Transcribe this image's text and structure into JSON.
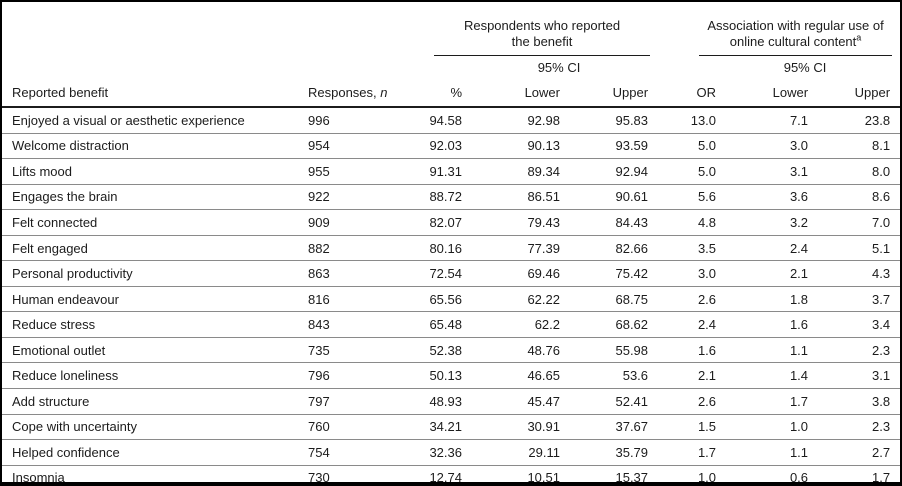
{
  "table": {
    "group_headers": [
      {
        "label": "Respondents who reported the benefit",
        "superscript": ""
      },
      {
        "label": "Association with regular use of online cultural content",
        "superscript": "a"
      }
    ],
    "columns": {
      "benefit": "Reported benefit",
      "responses_prefix": "Responses, ",
      "responses_symbol": "n",
      "ci": "95% CI",
      "percent": "%",
      "lower": "Lower",
      "upper": "Upper",
      "odds_ratio": "OR"
    },
    "rows": [
      {
        "benefit": "Enjoyed a visual or aesthetic experience",
        "responses": "996",
        "percent": "94.58",
        "ci_lower": "92.98",
        "ci_upper": "95.83",
        "or": "13.0",
        "or_lower": "7.1",
        "or_upper": "23.8"
      },
      {
        "benefit": "Welcome distraction",
        "responses": "954",
        "percent": "92.03",
        "ci_lower": "90.13",
        "ci_upper": "93.59",
        "or": "5.0",
        "or_lower": "3.0",
        "or_upper": "8.1"
      },
      {
        "benefit": "Lifts mood",
        "responses": "955",
        "percent": "91.31",
        "ci_lower": "89.34",
        "ci_upper": "92.94",
        "or": "5.0",
        "or_lower": "3.1",
        "or_upper": "8.0"
      },
      {
        "benefit": "Engages the brain",
        "responses": "922",
        "percent": "88.72",
        "ci_lower": "86.51",
        "ci_upper": "90.61",
        "or": "5.6",
        "or_lower": "3.6",
        "or_upper": "8.6"
      },
      {
        "benefit": "Felt connected",
        "responses": "909",
        "percent": "82.07",
        "ci_lower": "79.43",
        "ci_upper": "84.43",
        "or": "4.8",
        "or_lower": "3.2",
        "or_upper": "7.0"
      },
      {
        "benefit": "Felt engaged",
        "responses": "882",
        "percent": "80.16",
        "ci_lower": "77.39",
        "ci_upper": "82.66",
        "or": "3.5",
        "or_lower": "2.4",
        "or_upper": "5.1"
      },
      {
        "benefit": "Personal productivity",
        "responses": "863",
        "percent": "72.54",
        "ci_lower": "69.46",
        "ci_upper": "75.42",
        "or": "3.0",
        "or_lower": "2.1",
        "or_upper": "4.3"
      },
      {
        "benefit": "Human endeavour",
        "responses": "816",
        "percent": "65.56",
        "ci_lower": "62.22",
        "ci_upper": "68.75",
        "or": "2.6",
        "or_lower": "1.8",
        "or_upper": "3.7"
      },
      {
        "benefit": "Reduce stress",
        "responses": "843",
        "percent": "65.48",
        "ci_lower": "62.2",
        "ci_upper": "68.62",
        "or": "2.4",
        "or_lower": "1.6",
        "or_upper": "3.4"
      },
      {
        "benefit": "Emotional outlet",
        "responses": "735",
        "percent": "52.38",
        "ci_lower": "48.76",
        "ci_upper": "55.98",
        "or": "1.6",
        "or_lower": "1.1",
        "or_upper": "2.3"
      },
      {
        "benefit": "Reduce loneliness",
        "responses": "796",
        "percent": "50.13",
        "ci_lower": "46.65",
        "ci_upper": "53.6",
        "or": "2.1",
        "or_lower": "1.4",
        "or_upper": "3.1"
      },
      {
        "benefit": "Add structure",
        "responses": "797",
        "percent": "48.93",
        "ci_lower": "45.47",
        "ci_upper": "52.41",
        "or": "2.6",
        "or_lower": "1.7",
        "or_upper": "3.8"
      },
      {
        "benefit": "Cope with uncertainty",
        "responses": "760",
        "percent": "34.21",
        "ci_lower": "30.91",
        "ci_upper": "37.67",
        "or": "1.5",
        "or_lower": "1.0",
        "or_upper": "2.3"
      },
      {
        "benefit": "Helped confidence",
        "responses": "754",
        "percent": "32.36",
        "ci_lower": "29.11",
        "ci_upper": "35.79",
        "or": "1.7",
        "or_lower": "1.1",
        "or_upper": "2.7"
      },
      {
        "benefit": "Insomnia",
        "responses": "730",
        "percent": "12.74",
        "ci_lower": "10.51",
        "ci_upper": "15.37",
        "or": "1.0",
        "or_lower": "0.6",
        "or_upper": "1.7"
      }
    ]
  }
}
